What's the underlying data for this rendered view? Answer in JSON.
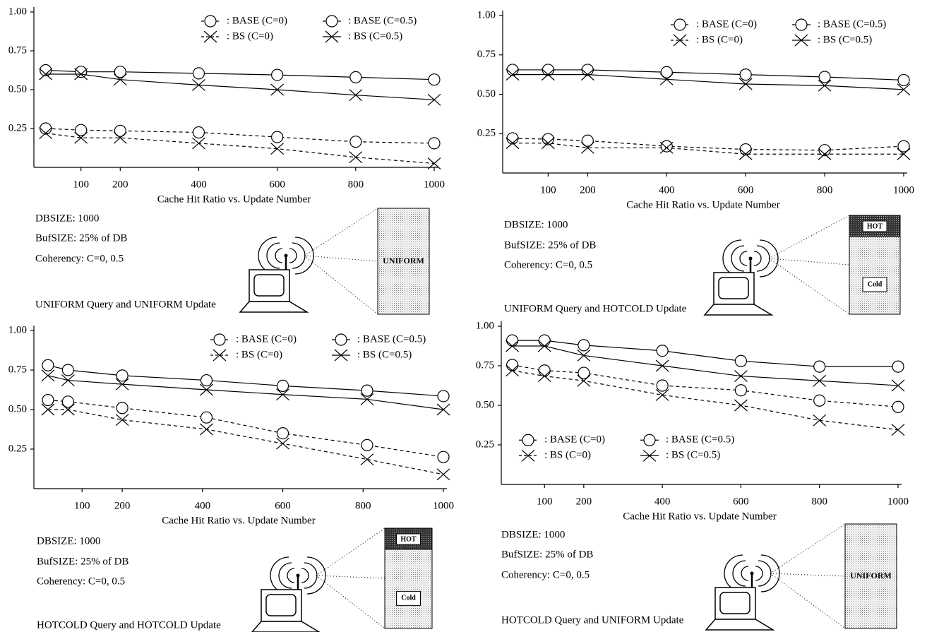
{
  "chart_data": [
    {
      "type": "line",
      "x_label": "Cache Hit Ratio vs. Update Number",
      "xlim": [
        -20,
        1000
      ],
      "xticks": [
        100,
        200,
        400,
        600,
        800,
        1000
      ],
      "ylim": [
        0,
        1
      ],
      "yticks": [
        {
          "value": 0.25,
          "label": "0.25"
        },
        {
          "value": 0.5,
          "label": "0.50"
        },
        {
          "value": 0.75,
          "label": "0.75"
        },
        {
          "value": 1,
          "label": "1.00"
        }
      ],
      "legend": "upper right",
      "x": [
        10,
        100,
        200,
        400,
        600,
        800,
        1000
      ],
      "series": [
        {
          "name": ": BASE (C=0)",
          "color": "#000000",
          "dashed": true,
          "marker": "circle",
          "values": [
            0.25,
            0.24,
            0.235,
            0.225,
            0.195,
            0.165,
            0.155
          ]
        },
        {
          "name": ": BASE (C=0.5)",
          "color": "#000000",
          "dashed": false,
          "marker": "circle",
          "values": [
            0.625,
            0.615,
            0.615,
            0.605,
            0.595,
            0.58,
            0.565
          ]
        },
        {
          "name": ": BS (C=0)",
          "color": "#000000",
          "dashed": true,
          "marker": "x",
          "values": [
            0.22,
            0.19,
            0.19,
            0.155,
            0.12,
            0.065,
            0.025
          ]
        },
        {
          "name": ": BS (C=0.5)",
          "color": "#000000",
          "dashed": false,
          "marker": "x",
          "values": [
            0.6,
            0.6,
            0.565,
            0.53,
            0.5,
            0.465,
            0.435
          ]
        }
      ],
      "notes": [
        "DBSIZE: 1000",
        "BufSIZE: 25% of DB",
        "Coherency: C=0, 0.5"
      ],
      "caption": "UNIFORM Query and UNIFORM Update",
      "diagram_labels": [
        "UNIFORM"
      ]
    },
    {
      "type": "line",
      "x_label": "Cache Hit Ratio vs. Update Number",
      "xlim": [
        -15,
        1000
      ],
      "xticks": [
        100,
        200,
        400,
        600,
        800,
        1000
      ],
      "ylim": [
        0,
        1
      ],
      "yticks": [
        {
          "value": 0.25,
          "label": "0.25"
        },
        {
          "value": 0.5,
          "label": "0.50"
        },
        {
          "value": 0.75,
          "label": "0.75"
        },
        {
          "value": 1,
          "label": "1.00"
        }
      ],
      "legend": "upper right",
      "x": [
        10,
        100,
        200,
        400,
        600,
        800,
        1000
      ],
      "series": [
        {
          "name": ": BASE (C=0)",
          "color": "#000000",
          "dashed": true,
          "marker": "circle",
          "values": [
            0.22,
            0.215,
            0.205,
            0.17,
            0.15,
            0.145,
            0.17
          ]
        },
        {
          "name": ": BASE (C=0.5)",
          "color": "#000000",
          "dashed": false,
          "marker": "circle",
          "values": [
            0.655,
            0.655,
            0.655,
            0.64,
            0.625,
            0.61,
            0.59
          ]
        },
        {
          "name": ": BS (C=0)",
          "color": "#000000",
          "dashed": true,
          "marker": "x",
          "values": [
            0.19,
            0.19,
            0.16,
            0.16,
            0.12,
            0.12,
            0.12
          ]
        },
        {
          "name": ": BS (C=0.5)",
          "color": "#000000",
          "dashed": false,
          "marker": "x",
          "values": [
            0.625,
            0.625,
            0.625,
            0.595,
            0.565,
            0.555,
            0.53
          ]
        }
      ],
      "notes": [
        "DBSIZE: 1000",
        "BufSIZE: 25% of DB",
        "Coherency: C=0, 0.5"
      ],
      "caption": "UNIFORM Query and HOTCOLD Update",
      "diagram_labels": [
        "HOT",
        "Cold"
      ]
    },
    {
      "type": "line",
      "x_label": "Cache Hit Ratio vs. Update Number",
      "xlim": [
        -20,
        1000
      ],
      "xticks": [
        100,
        200,
        400,
        600,
        800,
        1000
      ],
      "ylim": [
        0,
        1
      ],
      "yticks": [
        {
          "value": 0.25,
          "label": "0.25"
        },
        {
          "value": 0.5,
          "label": "0.50"
        },
        {
          "value": 0.75,
          "label": "0.75"
        },
        {
          "value": 1,
          "label": "1.00"
        }
      ],
      "legend": "upper right",
      "x": [
        15,
        65,
        200,
        410,
        600,
        810,
        1000
      ],
      "series": [
        {
          "name": ": BASE (C=0)",
          "color": "#000000",
          "dashed": true,
          "marker": "circle",
          "values": [
            0.56,
            0.55,
            0.51,
            0.45,
            0.35,
            0.275,
            0.2
          ]
        },
        {
          "name": ": BASE (C=0.5)",
          "color": "#000000",
          "dashed": false,
          "marker": "circle",
          "values": [
            0.78,
            0.75,
            0.715,
            0.685,
            0.65,
            0.62,
            0.585
          ]
        },
        {
          "name": ": BS (C=0)",
          "color": "#000000",
          "dashed": true,
          "marker": "x",
          "values": [
            0.5,
            0.5,
            0.435,
            0.375,
            0.285,
            0.185,
            0.09
          ]
        },
        {
          "name": ": BS (C=0.5)",
          "color": "#000000",
          "dashed": false,
          "marker": "x",
          "values": [
            0.715,
            0.685,
            0.66,
            0.625,
            0.595,
            0.565,
            0.5
          ]
        }
      ],
      "notes": [
        "DBSIZE: 1000",
        "BufSIZE: 25% of DB",
        "Coherency: C=0, 0.5"
      ],
      "caption": "HOTCOLD Query and HOTCOLD Update",
      "diagram_labels": [
        "HOT",
        "Cold"
      ]
    },
    {
      "type": "line",
      "x_label": "Cache Hit Ratio vs. Update Number",
      "xlim": [
        -10,
        1000
      ],
      "xticks": [
        100,
        200,
        400,
        600,
        800,
        1000
      ],
      "ylim": [
        0,
        1
      ],
      "yticks": [
        {
          "value": 0.25,
          "label": "0.25"
        },
        {
          "value": 0.5,
          "label": "0.50"
        },
        {
          "value": 0.75,
          "label": "0.75"
        },
        {
          "value": 1,
          "label": "1.00"
        }
      ],
      "legend": "center left",
      "x": [
        18,
        100,
        200,
        400,
        600,
        800,
        1000
      ],
      "series": [
        {
          "name": ": BASE (C=0)",
          "color": "#000000",
          "dashed": true,
          "marker": "circle",
          "values": [
            0.755,
            0.72,
            0.705,
            0.625,
            0.595,
            0.53,
            0.49
          ]
        },
        {
          "name": ": BASE (C=0.5)",
          "color": "#000000",
          "dashed": false,
          "marker": "circle",
          "values": [
            0.91,
            0.91,
            0.88,
            0.845,
            0.78,
            0.745,
            0.745
          ]
        },
        {
          "name": ": BS (C=0)",
          "color": "#000000",
          "dashed": true,
          "marker": "x",
          "values": [
            0.72,
            0.685,
            0.655,
            0.565,
            0.5,
            0.405,
            0.345
          ]
        },
        {
          "name": ": BS (C=0.5)",
          "color": "#000000",
          "dashed": false,
          "marker": "x",
          "values": [
            0.875,
            0.875,
            0.815,
            0.75,
            0.685,
            0.655,
            0.625
          ]
        }
      ],
      "notes": [
        "DBSIZE: 1000",
        "BufSIZE: 25% of DB",
        "Coherency: C=0, 0.5"
      ],
      "caption": "HOTCOLD Query and UNIFORM Update",
      "diagram_labels": [
        "UNIFORM"
      ]
    }
  ]
}
